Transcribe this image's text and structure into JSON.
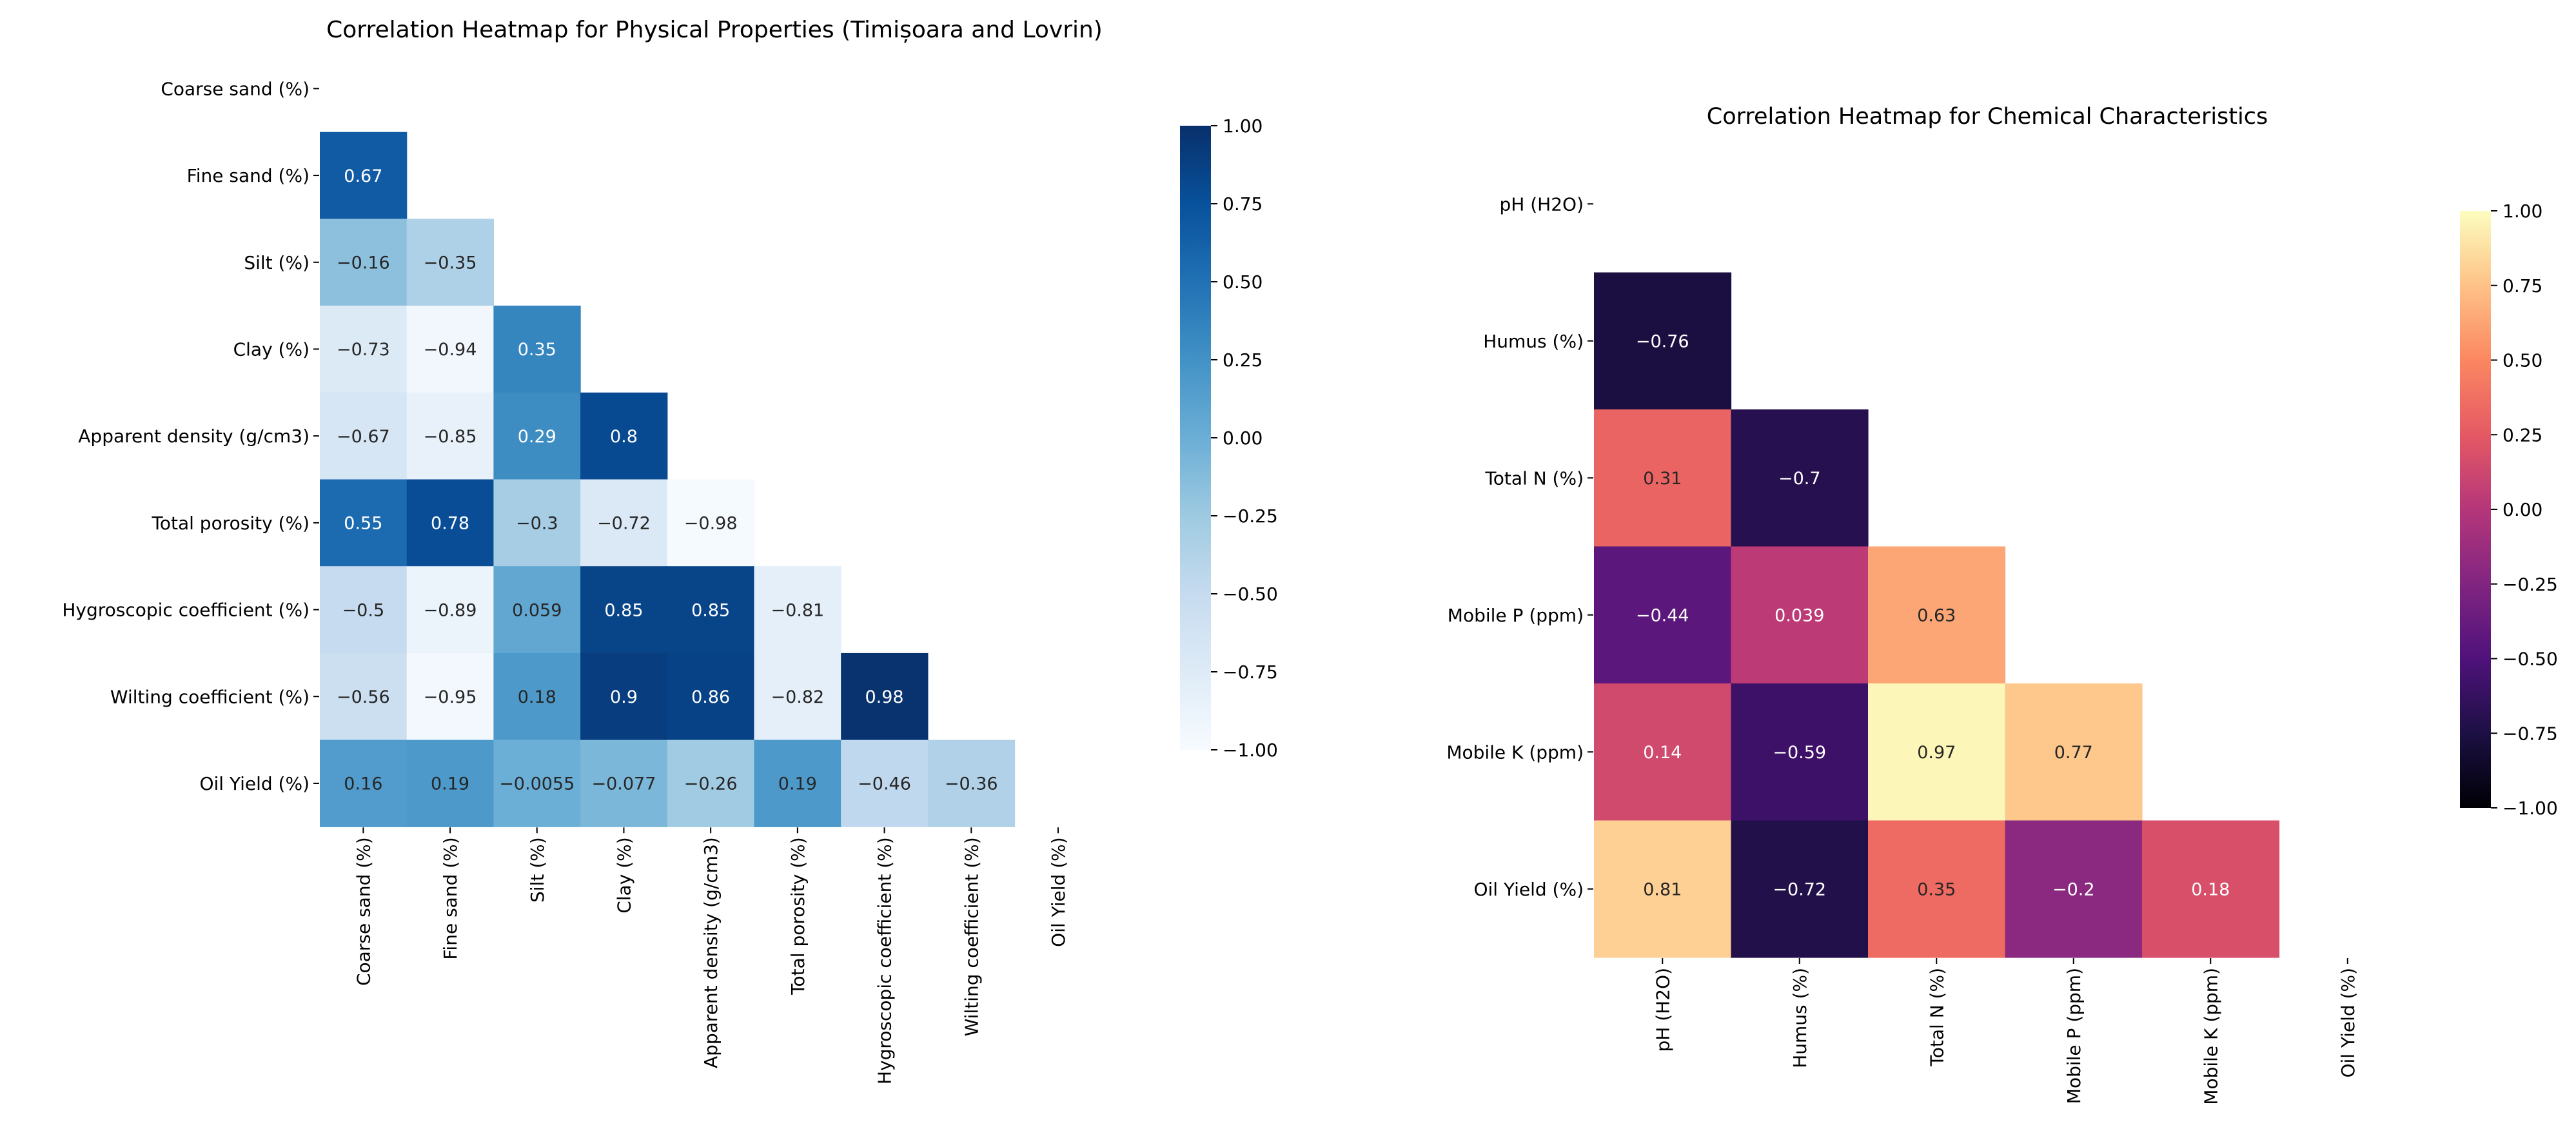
{
  "chart_data": [
    {
      "type": "heatmap",
      "title": "Correlation Heatmap for Physical Properties (Timișoara and Lovrin)",
      "labels": [
        "Coarse sand (%)",
        "Fine sand (%)",
        "Silt (%)",
        "Clay (%)",
        "Apparent density (g/cm3)",
        "Total porosity (%)",
        "Hygroscopic coefficient (%)",
        "Wilting coefficient (%)",
        "Oil Yield (%)"
      ],
      "matrix": [
        [
          null,
          null,
          null,
          null,
          null,
          null,
          null,
          null,
          null
        ],
        [
          "0.67",
          null,
          null,
          null,
          null,
          null,
          null,
          null,
          null
        ],
        [
          "−0.16",
          "−0.35",
          null,
          null,
          null,
          null,
          null,
          null,
          null
        ],
        [
          "−0.73",
          "−0.94",
          "0.35",
          null,
          null,
          null,
          null,
          null,
          null
        ],
        [
          "−0.67",
          "−0.85",
          "0.29",
          "0.8",
          null,
          null,
          null,
          null,
          null
        ],
        [
          "0.55",
          "0.78",
          "−0.3",
          "−0.72",
          "−0.98",
          null,
          null,
          null,
          null
        ],
        [
          "−0.5",
          "−0.89",
          "0.059",
          "0.85",
          "0.85",
          "−0.81",
          null,
          null,
          null
        ],
        [
          "−0.56",
          "−0.95",
          "0.18",
          "0.9",
          "0.86",
          "−0.82",
          "0.98",
          null,
          null
        ],
        [
          "0.16",
          "0.19",
          "−0.0055",
          "−0.077",
          "−0.26",
          "0.19",
          "−0.46",
          "−0.36",
          null
        ]
      ],
      "colormap": "Blues",
      "colormap_stops": [
        "#f7fbff",
        "#deebf7",
        "#c6dbef",
        "#9ecae1",
        "#6baed6",
        "#4292c6",
        "#2171b5",
        "#08519c",
        "#08306b"
      ],
      "vmin": -1.0,
      "vmax": 1.0,
      "colorbar_ticks": [
        "1.00",
        "0.75",
        "0.50",
        "0.25",
        "0.00",
        "−0.25",
        "−0.50",
        "−0.75",
        "−1.00"
      ]
    },
    {
      "type": "heatmap",
      "title": "Correlation Heatmap for Chemical Characteristics",
      "labels": [
        "pH (H2O)",
        "Humus (%)",
        "Total N (%)",
        "Mobile P (ppm)",
        "Mobile K (ppm)",
        "Oil Yield (%)"
      ],
      "matrix": [
        [
          null,
          null,
          null,
          null,
          null,
          null
        ],
        [
          "−0.76",
          null,
          null,
          null,
          null,
          null
        ],
        [
          "0.31",
          "−0.7",
          null,
          null,
          null,
          null
        ],
        [
          "−0.44",
          "0.039",
          "0.63",
          null,
          null,
          null
        ],
        [
          "0.14",
          "−0.59",
          "0.97",
          "0.77",
          null,
          null
        ],
        [
          "0.81",
          "−0.72",
          "0.35",
          "−0.2",
          "0.18",
          null
        ]
      ],
      "colormap": "magma",
      "colormap_stops": [
        "#000004",
        "#1c1044",
        "#4f127b",
        "#812581",
        "#b5367a",
        "#e55964",
        "#fb8761",
        "#fec287",
        "#fcfdbf"
      ],
      "vmin": -1.0,
      "vmax": 1.0,
      "colorbar_ticks": [
        "1.00",
        "0.75",
        "0.50",
        "0.25",
        "0.00",
        "−0.25",
        "−0.50",
        "−0.75",
        "−1.00"
      ]
    }
  ]
}
